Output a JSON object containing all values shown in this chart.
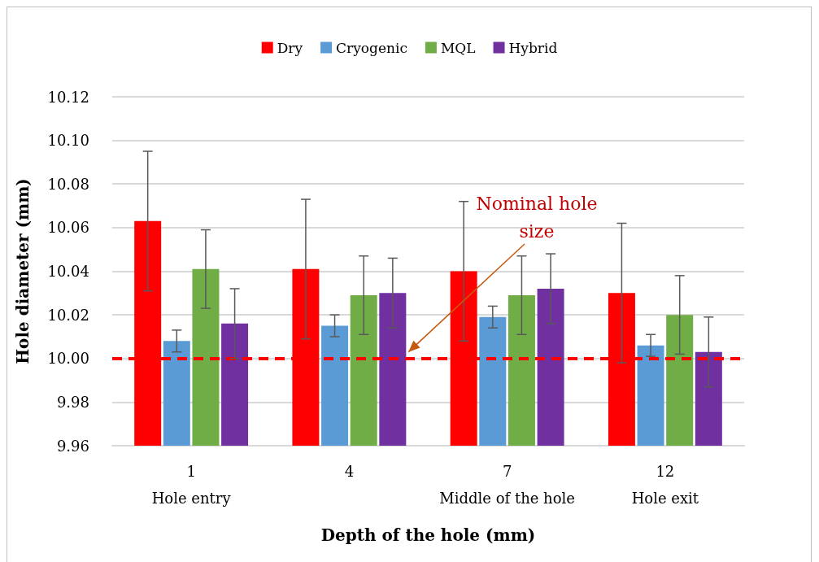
{
  "chart_data": {
    "type": "bar",
    "xlabel": "Depth of the hole (mm)",
    "ylabel": "Hole diameter (mm)",
    "categories": [
      "1",
      "4",
      "7",
      "12"
    ],
    "series": [
      {
        "name": "Dry",
        "color": "#ff0000",
        "values": [
          10.063,
          10.041,
          10.04,
          10.03
        ],
        "errors": [
          0.032,
          0.032,
          0.032,
          0.032
        ]
      },
      {
        "name": "Cryogenic",
        "color": "#5b9bd5",
        "values": [
          10.008,
          10.015,
          10.019,
          10.006
        ],
        "errors": [
          0.005,
          0.005,
          0.005,
          0.005
        ]
      },
      {
        "name": "MQL",
        "color": "#70ad47",
        "values": [
          10.041,
          10.029,
          10.029,
          10.02
        ],
        "errors": [
          0.018,
          0.018,
          0.018,
          0.018
        ]
      },
      {
        "name": "Hybrid",
        "color": "#7030a0",
        "values": [
          10.016,
          10.03,
          10.032,
          10.003
        ],
        "errors": [
          0.016,
          0.016,
          0.016,
          0.016
        ]
      }
    ],
    "ylim": [
      9.96,
      10.12
    ],
    "yticks": [
      9.96,
      9.98,
      {
        "value": 10.0,
        "label": "10.00"
      },
      10.02,
      10.04,
      10.06,
      10.08,
      {
        "value": 10.1,
        "label": "10.10"
      },
      10.12
    ],
    "ref_lines": [
      {
        "axis": "y",
        "value": 10.0,
        "label": "Nominal hole size",
        "color": "#ff0000",
        "line_style": "dashed"
      }
    ],
    "annotations": [
      "Hole entry",
      "Middle of the hole",
      "Hole exit"
    ],
    "grid": "y",
    "legend": "top"
  }
}
